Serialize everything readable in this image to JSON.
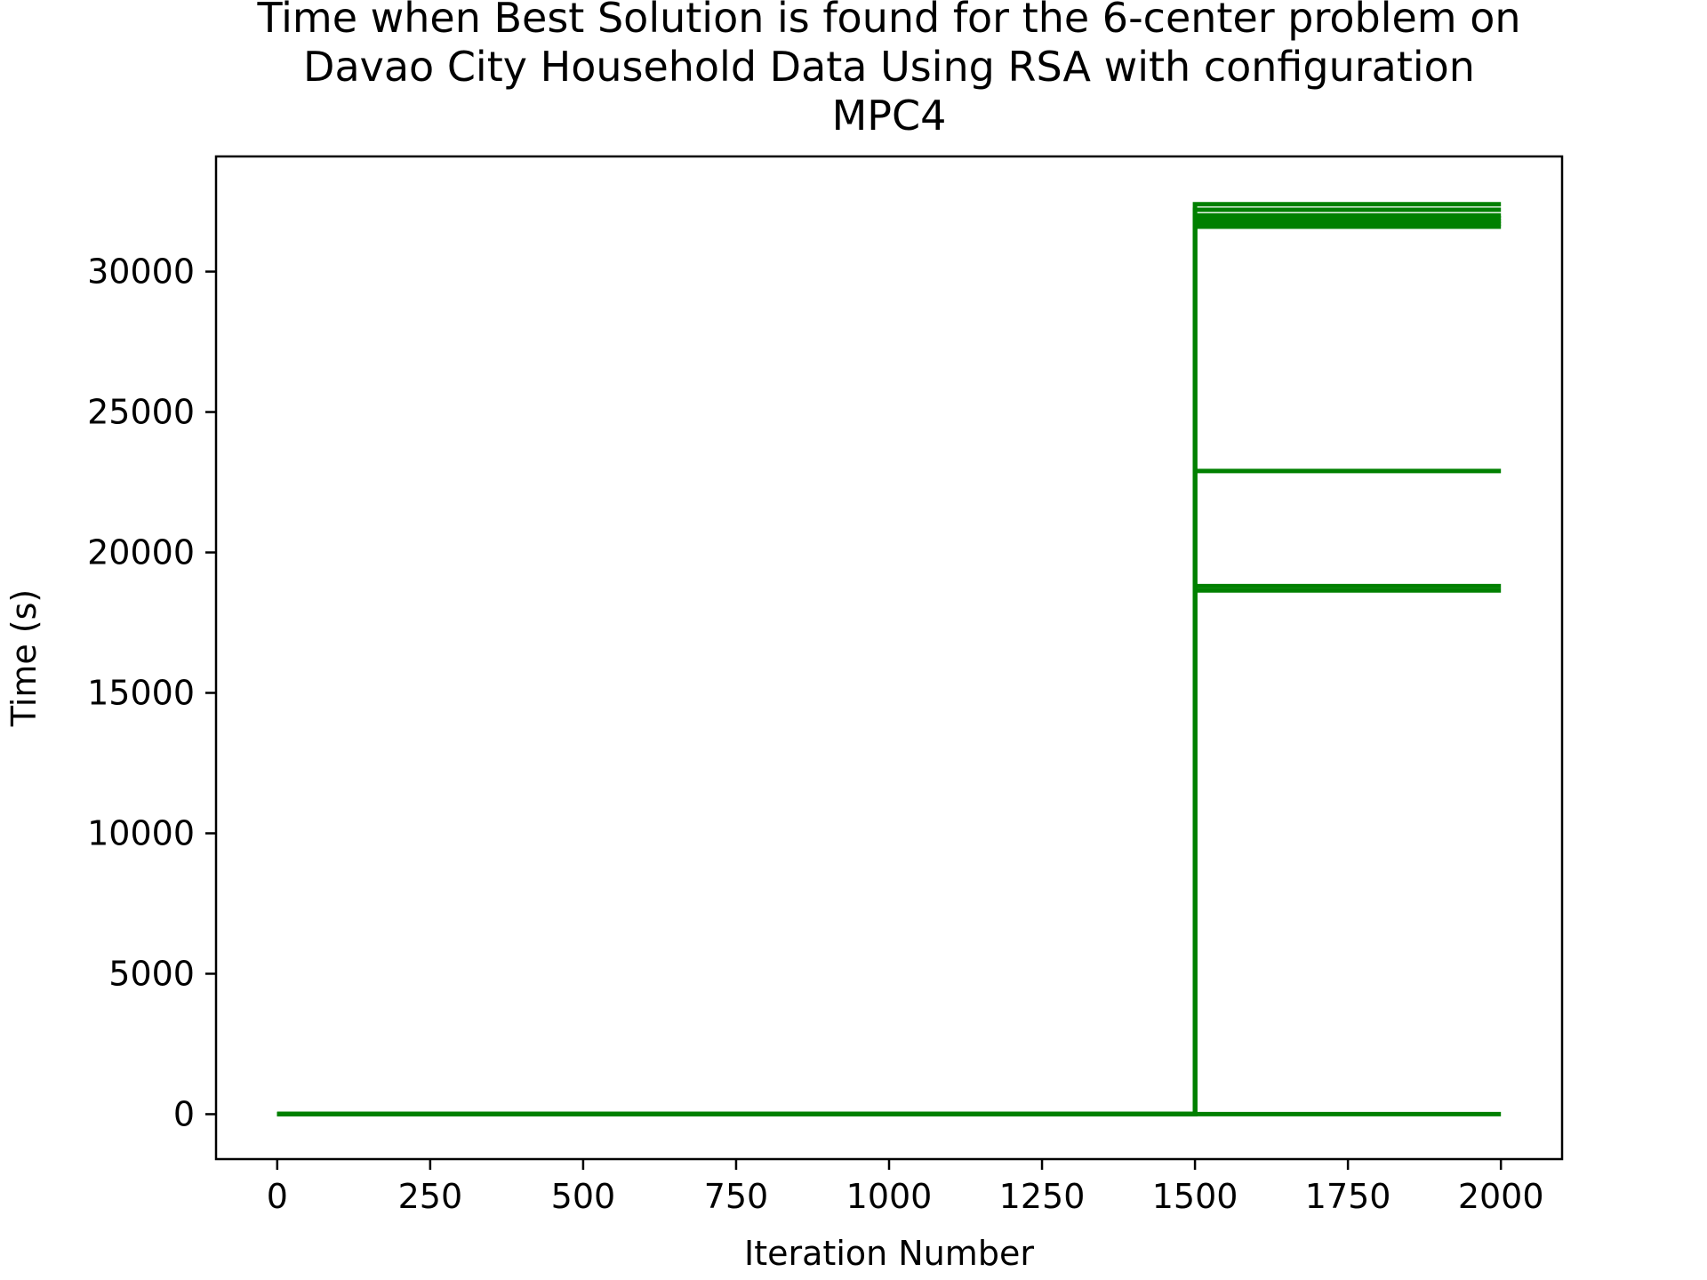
{
  "chart_data": {
    "type": "line",
    "title_lines": [
      "Time when Best Solution is found for the 6-center problem on",
      "Davao City Household Data Using RSA with configuration",
      "MPC4"
    ],
    "xlabel": "Iteration Number",
    "ylabel": "Time (s)",
    "xlim": [
      -100,
      2100
    ],
    "ylim": [
      -1600,
      34100
    ],
    "xticks": [
      0,
      250,
      500,
      750,
      1000,
      1250,
      1500,
      1750,
      2000
    ],
    "yticks": [
      0,
      5000,
      10000,
      15000,
      20000,
      25000,
      30000
    ],
    "grid": false,
    "legend": "none",
    "line_color": "#008000",
    "series": [
      {
        "x": [
          0,
          1500,
          1500,
          2000
        ],
        "y": [
          0,
          0,
          32400,
          32400
        ]
      },
      {
        "x": [
          0,
          1500,
          1500,
          2000
        ],
        "y": [
          0,
          0,
          32200,
          32200
        ]
      },
      {
        "x": [
          0,
          1500,
          1500,
          2000
        ],
        "y": [
          0,
          0,
          32000,
          32000
        ]
      },
      {
        "x": [
          0,
          1500,
          1500,
          2000
        ],
        "y": [
          0,
          0,
          31900,
          31900
        ]
      },
      {
        "x": [
          0,
          1500,
          1500,
          2000
        ],
        "y": [
          0,
          0,
          31800,
          31800
        ]
      },
      {
        "x": [
          0,
          1500,
          1500,
          2000
        ],
        "y": [
          0,
          0,
          31700,
          31700
        ]
      },
      {
        "x": [
          0,
          1500,
          1500,
          2000
        ],
        "y": [
          0,
          0,
          31600,
          31600
        ]
      },
      {
        "x": [
          0,
          1500,
          1500,
          2000
        ],
        "y": [
          0,
          0,
          22900,
          22900
        ]
      },
      {
        "x": [
          0,
          1500,
          1500,
          2000
        ],
        "y": [
          0,
          0,
          18800,
          18800
        ]
      },
      {
        "x": [
          0,
          1500,
          1500,
          2000
        ],
        "y": [
          0,
          0,
          18650,
          18650
        ]
      },
      {
        "x": [
          0,
          2000
        ],
        "y": [
          0,
          0
        ]
      }
    ]
  }
}
